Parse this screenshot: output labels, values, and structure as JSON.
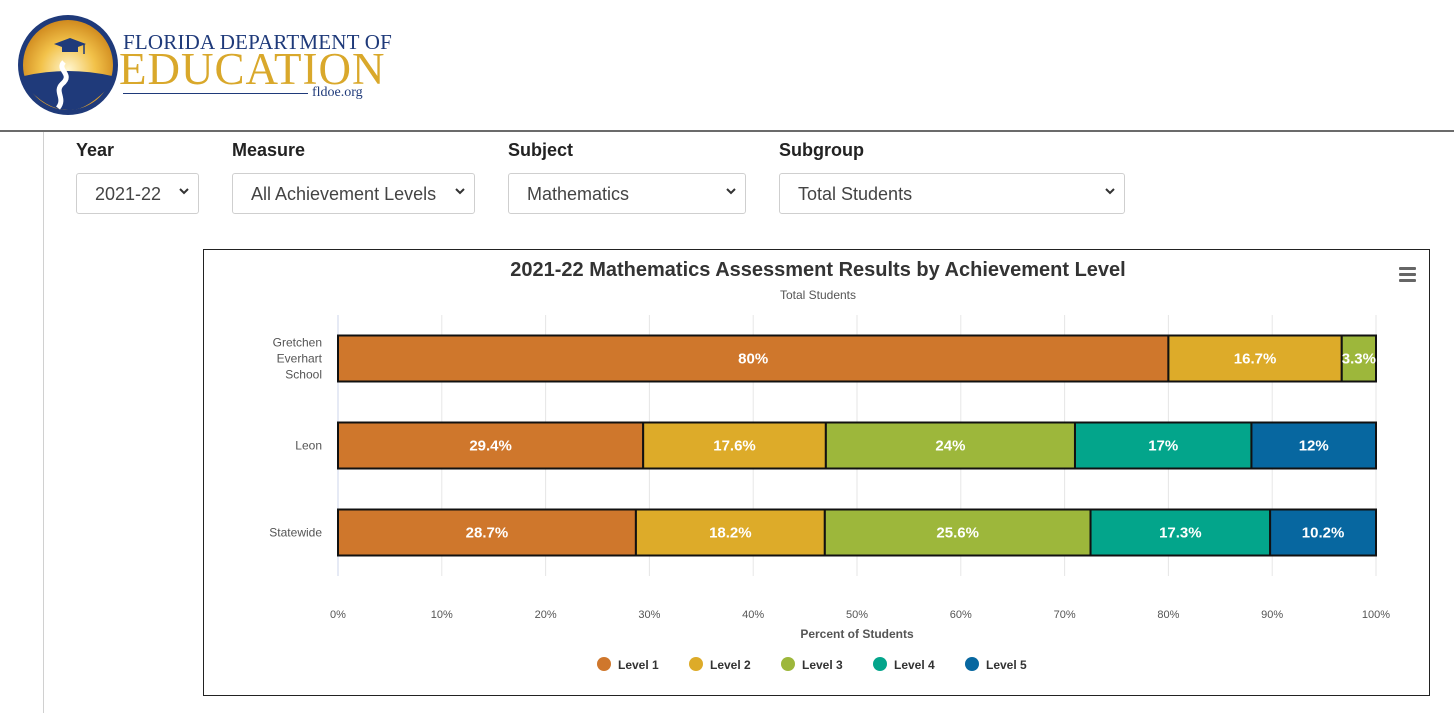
{
  "header": {
    "logo_line1": "FLORIDA DEPARTMENT OF",
    "logo_line2": "EDUCATION",
    "logo_url": "fldoe.org"
  },
  "filters": {
    "year": {
      "label": "Year",
      "value": "2021-22"
    },
    "measure": {
      "label": "Measure",
      "value": "All Achievement Levels"
    },
    "subject": {
      "label": "Subject",
      "value": "Mathematics"
    },
    "subgroup": {
      "label": "Subgroup",
      "value": "Total Students"
    }
  },
  "colors": {
    "level1": "#cf772c",
    "level2": "#ddab29",
    "level3": "#9db73b",
    "level4": "#03a58b",
    "level5": "#0767a0",
    "brand_blue": "#1f3a7a",
    "brand_gold": "#d9a82b"
  },
  "icons": {
    "chart_menu": "hamburger-menu-icon",
    "select_arrow": "chevron-down-icon"
  },
  "chart_data": {
    "type": "bar",
    "orientation": "horizontal",
    "stacked": "percent",
    "title": "2021-22 Mathematics Assessment Results by Achievement Level",
    "subtitle": "Total Students",
    "xlabel": "Percent of Students",
    "ylabel": "",
    "xlim": [
      0,
      100
    ],
    "x_ticks": [
      "0%",
      "10%",
      "20%",
      "30%",
      "40%",
      "50%",
      "60%",
      "70%",
      "80%",
      "90%",
      "100%"
    ],
    "grid": true,
    "legend_position": "bottom-center",
    "categories": [
      {
        "lines": [
          "Gretchen",
          "Everhart",
          "School"
        ]
      },
      {
        "lines": [
          "Leon"
        ]
      },
      {
        "lines": [
          "Statewide"
        ]
      }
    ],
    "series": [
      {
        "name": "Level 1",
        "color": "#cf772c",
        "values": [
          80,
          29.4,
          28.7
        ],
        "labels": [
          "80%",
          "29.4%",
          "28.7%"
        ]
      },
      {
        "name": "Level 2",
        "color": "#ddab29",
        "values": [
          16.7,
          17.6,
          18.2
        ],
        "labels": [
          "16.7%",
          "17.6%",
          "18.2%"
        ]
      },
      {
        "name": "Level 3",
        "color": "#9db73b",
        "values": [
          3.3,
          24,
          25.6
        ],
        "labels": [
          "3.3%",
          "24%",
          "25.6%"
        ]
      },
      {
        "name": "Level 4",
        "color": "#03a58b",
        "values": [
          0,
          17,
          17.3
        ],
        "labels": [
          "",
          "17%",
          "17.3%"
        ]
      },
      {
        "name": "Level 5",
        "color": "#0767a0",
        "values": [
          0,
          12,
          10.2
        ],
        "labels": [
          "",
          "12%",
          "10.2%"
        ]
      }
    ]
  }
}
